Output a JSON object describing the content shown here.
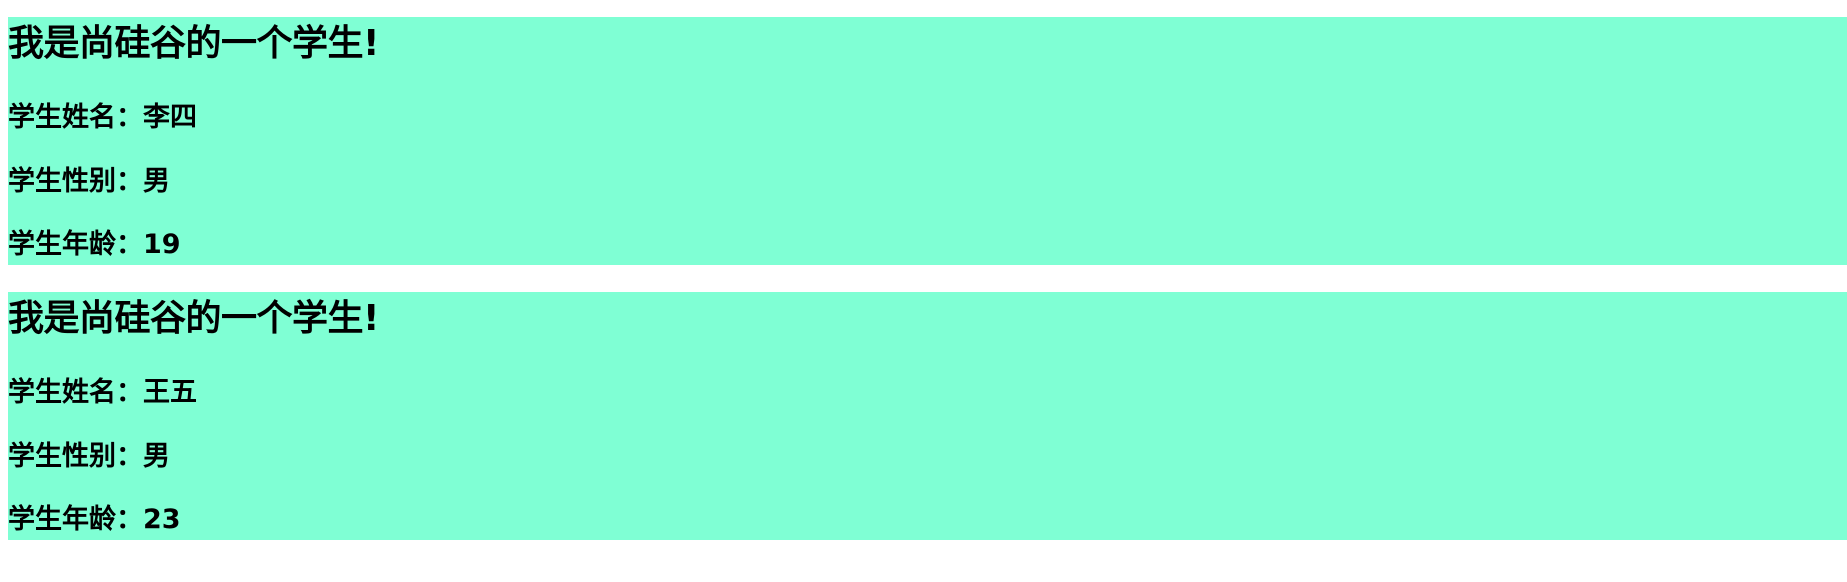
{
  "students": [
    {
      "title": "我是尚硅谷的一个学生!",
      "name_line": "学生姓名：李四",
      "gender_line": "学生性别：男",
      "age_line": "学生年龄：19"
    },
    {
      "title": "我是尚硅谷的一个学生!",
      "name_line": "学生姓名：王五",
      "gender_line": "学生性别：男",
      "age_line": "学生年龄：23"
    }
  ],
  "colors": {
    "card_background": "#7fffd4",
    "page_background": "#ffffff",
    "text": "#000000"
  }
}
